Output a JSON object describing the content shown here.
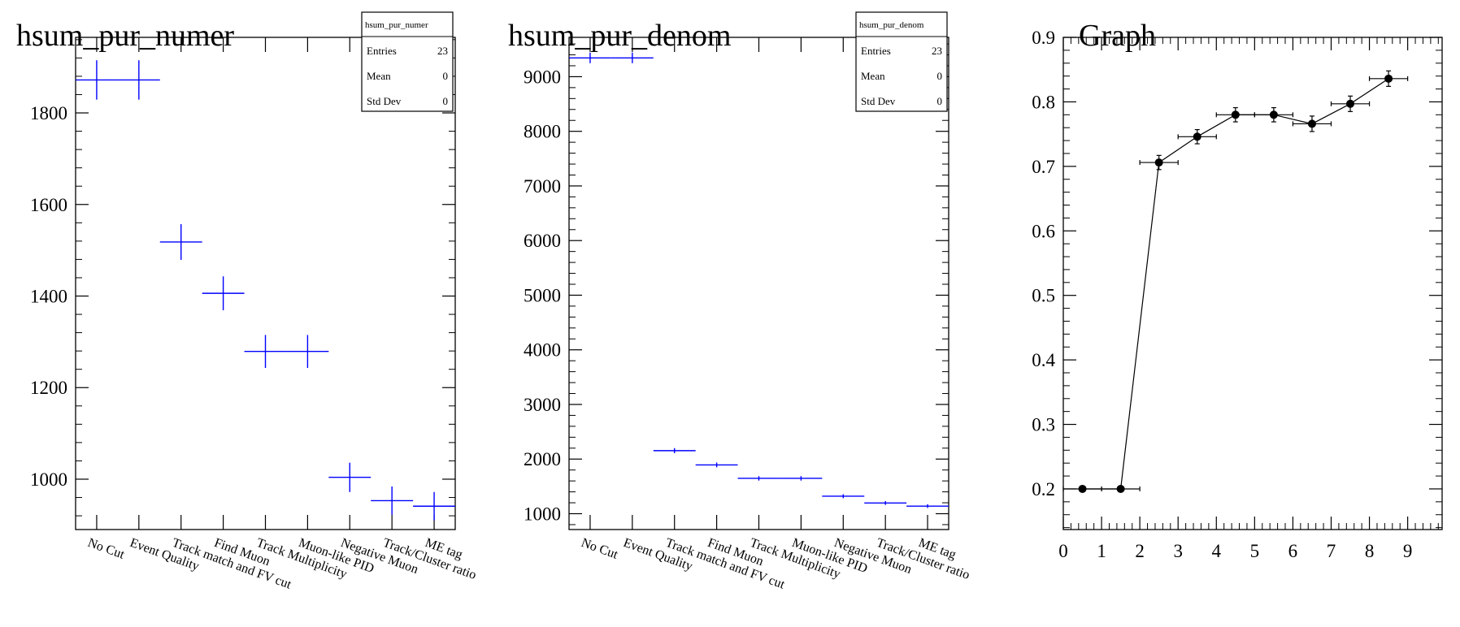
{
  "chart_data": [
    {
      "type": "histogram",
      "title": "hsum_pur_numer",
      "categories": [
        "No Cut",
        "Event Quality",
        "Track match and FV cut",
        "Find Muon",
        "Track Multiplicity",
        "Muon-like PID",
        "Negative Muon",
        "Track/Cluster ratio",
        "ME tag"
      ],
      "values": [
        1872,
        1872,
        1518,
        1406,
        1279,
        1279,
        1004,
        953,
        941
      ],
      "errors": [
        43,
        43,
        39,
        37,
        36,
        36,
        32,
        31,
        31
      ],
      "ylim": [
        890,
        1965
      ],
      "yticks": [
        1000,
        1200,
        1400,
        1600,
        1800
      ],
      "line_color": "#0000ff",
      "stats": {
        "name": "hsum_pur_numer",
        "rows": [
          {
            "label": "Entries",
            "value": "23"
          },
          {
            "label": "Mean",
            "value": "0"
          },
          {
            "label": "Std Dev",
            "value": "0"
          }
        ]
      }
    },
    {
      "type": "histogram",
      "title": "hsum_pur_denom",
      "categories": [
        "No Cut",
        "Event Quality",
        "Track match and FV cut",
        "Find Muon",
        "Track Multiplicity",
        "Muon-like PID",
        "Negative Muon",
        "Track/Cluster ratio",
        "ME tag"
      ],
      "values": [
        9344,
        9344,
        2154,
        1893,
        1647,
        1647,
        1320,
        1196,
        1139
      ],
      "errors": [
        97,
        97,
        46,
        44,
        41,
        41,
        36,
        35,
        34
      ],
      "ylim": [
        710,
        9720
      ],
      "yticks": [
        1000,
        2000,
        3000,
        4000,
        5000,
        6000,
        7000,
        8000,
        9000
      ],
      "line_color": "#0000ff",
      "stats": {
        "name": "hsum_pur_denom",
        "rows": [
          {
            "label": "Entries",
            "value": "23"
          },
          {
            "label": "Mean",
            "value": "0"
          },
          {
            "label": "Std Dev",
            "value": "0"
          }
        ]
      }
    },
    {
      "type": "scatter",
      "title": "Graph",
      "x": [
        0.5,
        1.5,
        2.5,
        3.5,
        4.5,
        5.5,
        6.5,
        7.5,
        8.5
      ],
      "y": [
        0.2,
        0.2,
        0.706,
        0.746,
        0.78,
        0.78,
        0.766,
        0.797,
        0.836
      ],
      "xerr": [
        0.5,
        0.5,
        0.5,
        0.5,
        0.5,
        0.5,
        0.5,
        0.5,
        0.5
      ],
      "yerr": [
        0.003,
        0.003,
        0.011,
        0.011,
        0.011,
        0.011,
        0.012,
        0.012,
        0.012
      ],
      "xlim": [
        0,
        9.9
      ],
      "ylim": [
        0.137,
        0.9
      ],
      "xticks": [
        0,
        1,
        2,
        3,
        4,
        5,
        6,
        7,
        8,
        9
      ],
      "yticks": [
        0.2,
        0.3,
        0.4,
        0.5,
        0.6,
        0.7,
        0.8,
        0.9
      ],
      "marker_color": "#000000"
    }
  ]
}
